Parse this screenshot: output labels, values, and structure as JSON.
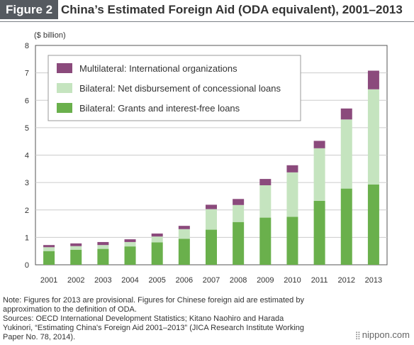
{
  "header": {
    "figure_label": "Figure 2",
    "title": "China’s Estimated Foreign Aid (ODA equivalent), 2001–2013"
  },
  "chart_data": {
    "type": "bar",
    "stacked": true,
    "unit_label": "($ billion)",
    "ylim": [
      0,
      8
    ],
    "yticks": [
      0,
      1,
      2,
      3,
      4,
      5,
      6,
      7,
      8
    ],
    "categories": [
      "2001",
      "2002",
      "2003",
      "2004",
      "2005",
      "2006",
      "2007",
      "2008",
      "2009",
      "2010",
      "2011",
      "2012",
      "2013"
    ],
    "series": [
      {
        "name": "Bilateral: Grants and interest-free loans",
        "color": "#6ab04c",
        "values": [
          0.5,
          0.55,
          0.58,
          0.67,
          0.82,
          0.95,
          1.28,
          1.56,
          1.72,
          1.75,
          2.33,
          2.78,
          2.93
        ]
      },
      {
        "name": "Bilateral: Net disbursement of concessional loans",
        "color": "#c5e4bf",
        "values": [
          0.14,
          0.13,
          0.14,
          0.16,
          0.21,
          0.35,
          0.75,
          0.62,
          1.18,
          1.62,
          1.92,
          2.52,
          3.47
        ]
      },
      {
        "name": "Multilateral: International organizations",
        "color": "#8b4a7c",
        "values": [
          0.08,
          0.1,
          0.11,
          0.1,
          0.11,
          0.12,
          0.16,
          0.22,
          0.23,
          0.26,
          0.27,
          0.4,
          0.68
        ]
      }
    ],
    "legend_order": [
      2,
      1,
      0
    ],
    "legend_position": "top-left"
  },
  "notes": {
    "line1": "Note: Figures for 2013 are provisional. Figures for Chinese foreign aid are estimated by",
    "line2": "approximation to the definition of ODA.",
    "line3": "Sources: OECD International Development Statistics; Kitano Naohiro and Harada",
    "line4": "Yukinori, “Estimating China's Foreign Aid 2001–2013” (JICA Research Institute Working",
    "line5": "Paper No. 78, 2014)."
  },
  "brand": {
    "name": "nippon.com",
    "icon": "nippon-logo-icon"
  }
}
